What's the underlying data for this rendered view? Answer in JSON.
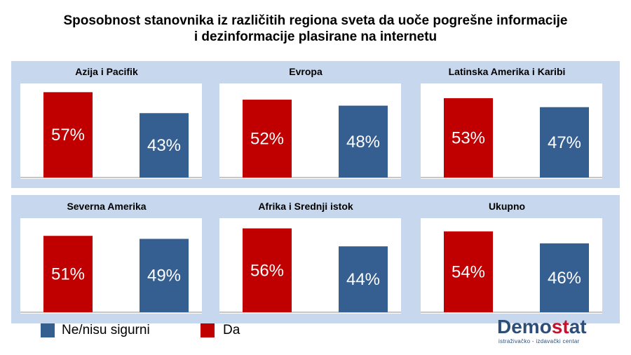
{
  "title": {
    "line1": "Sposobnost stanovnika iz različitih regiona sveta da uoče pogrešne informacije",
    "line2": "i dezinformacije plasirane na internetu"
  },
  "legend": {
    "no_label": "Ne/nisu sigurni",
    "yes_label": "Da"
  },
  "logo": {
    "word_main": "Demo",
    "word_accent": "st",
    "word_end": "at",
    "subtitle": "istraživačko - izdavački centar"
  },
  "colors": {
    "da": "#c00000",
    "ne": "#365f91",
    "background_band": "#c7d8ee"
  },
  "chart_data": [
    {
      "type": "bar",
      "title": "Azija i Pacifik",
      "categories": [
        "Da",
        "Ne/nisu sigurni"
      ],
      "values": [
        57,
        43
      ],
      "labels": [
        "57%",
        "43%"
      ],
      "ylim": [
        0,
        60
      ]
    },
    {
      "type": "bar",
      "title": "Evropa",
      "categories": [
        "Da",
        "Ne/nisu sigurni"
      ],
      "values": [
        52,
        48
      ],
      "labels": [
        "52%",
        "48%"
      ],
      "ylim": [
        0,
        60
      ]
    },
    {
      "type": "bar",
      "title": "Latinska Amerika i Karibi",
      "categories": [
        "Da",
        "Ne/nisu sigurni"
      ],
      "values": [
        53,
        47
      ],
      "labels": [
        "53%",
        "47%"
      ],
      "ylim": [
        0,
        60
      ]
    },
    {
      "type": "bar",
      "title": "Severna Amerika",
      "categories": [
        "Da",
        "Ne/nisu sigurni"
      ],
      "values": [
        51,
        49
      ],
      "labels": [
        "51%",
        "49%"
      ],
      "ylim": [
        0,
        60
      ]
    },
    {
      "type": "bar",
      "title": "Afrika i Srednji istok",
      "categories": [
        "Da",
        "Ne/nisu sigurni"
      ],
      "values": [
        56,
        44
      ],
      "labels": [
        "56%",
        "44%"
      ],
      "ylim": [
        0,
        60
      ]
    },
    {
      "type": "bar",
      "title": "Ukupno",
      "categories": [
        "Da",
        "Ne/nisu sigurni"
      ],
      "values": [
        54,
        46
      ],
      "labels": [
        "54%",
        "46%"
      ],
      "ylim": [
        0,
        60
      ]
    }
  ]
}
